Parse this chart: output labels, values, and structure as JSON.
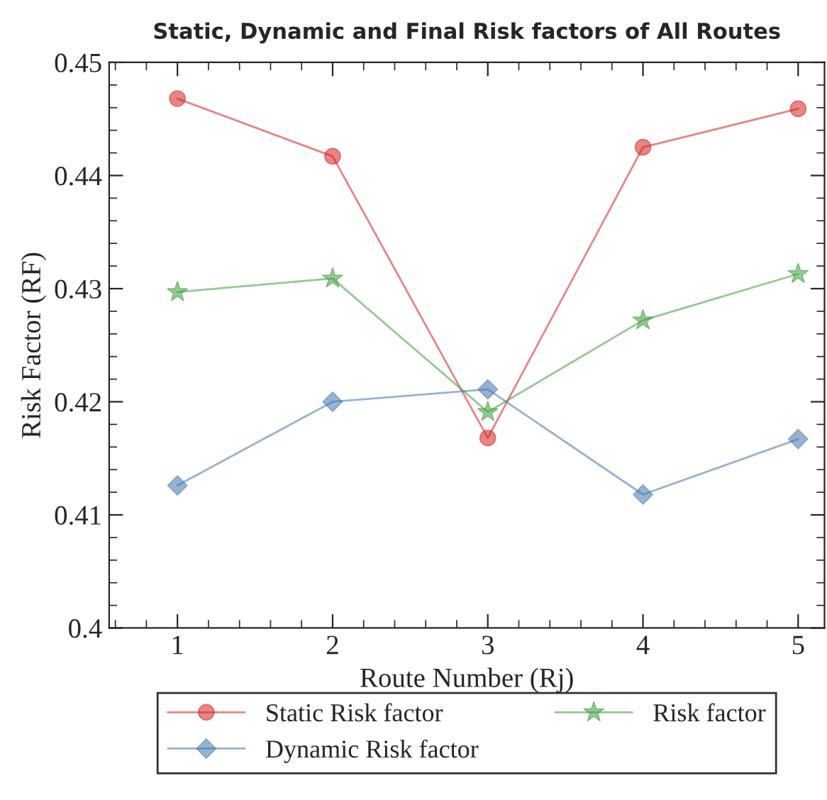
{
  "chart_data": {
    "type": "line",
    "title": "Static, Dynamic and Final Risk factors of All Routes",
    "xlabel": "Route Number (Rj)",
    "ylabel": "Risk Factor (RF)",
    "x": [
      1,
      2,
      3,
      4,
      5
    ],
    "xlim": [
      0.56,
      5.17
    ],
    "xticks": [
      1,
      2,
      3,
      4,
      5
    ],
    "ylim": [
      0.4,
      0.45
    ],
    "yticks": [
      0.4,
      0.41,
      0.42,
      0.43,
      0.44,
      0.45
    ],
    "legend": "bottom",
    "grid": false,
    "line_style": "solid",
    "series": [
      {
        "name": "Static Risk factor",
        "color": "#d42020",
        "marker": "circle",
        "values": [
          0.4468,
          0.4417,
          0.4168,
          0.4425,
          0.4459
        ]
      },
      {
        "name": "Dynamic Risk factor",
        "color": "#3f74ad",
        "marker": "diamond",
        "values": [
          0.4126,
          0.42,
          0.4211,
          0.4118,
          0.4167
        ]
      },
      {
        "name": "Risk factor",
        "color": "#3c9a3c",
        "marker": "star",
        "values": [
          0.4297,
          0.4309,
          0.4191,
          0.4272,
          0.4313
        ]
      }
    ]
  }
}
